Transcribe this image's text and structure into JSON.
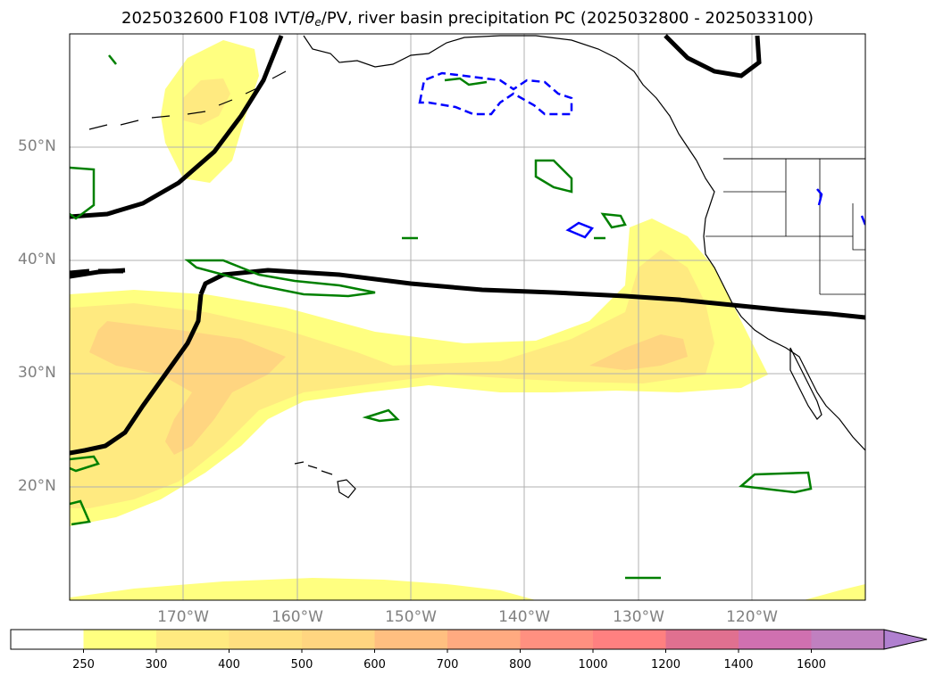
{
  "title": {
    "main_prefix": "2025032600 F108 IVT/",
    "theta": "θ",
    "theta_sub": "e",
    "main_suffix": "/PV, river basin precipitation PC (2025032800 - 2025033100)"
  },
  "map": {
    "lat_labels": [
      "50°N",
      "40°N",
      "30°N",
      "20°N"
    ],
    "lon_labels": [
      "170°W",
      "160°W",
      "150°W",
      "140°W",
      "130°W",
      "120°W"
    ],
    "colors": {
      "ocean": "#ffffff",
      "coast": "#000000",
      "gridline": "#b0b0b0",
      "theta_contour": "#000000",
      "pv_contour_green": "#008000",
      "pv_contour_blue": "#0000ff",
      "ivt_250": "#ffff80",
      "ivt_300": "#ffea80",
      "ivt_400": "#ffd580"
    }
  },
  "colorbar": {
    "labels": [
      "250",
      "300",
      "400",
      "500",
      "600",
      "700",
      "800",
      "1000",
      "1200",
      "1400",
      "1600"
    ],
    "colors": [
      "#ffffff",
      "#ffff80",
      "#ffea80",
      "#ffdf80",
      "#ffd580",
      "#ffbf80",
      "#ffaa80",
      "#ff9080",
      "#ff8080",
      "#e07090",
      "#d070b0",
      "#c080c0",
      "#b080d0"
    ]
  }
}
